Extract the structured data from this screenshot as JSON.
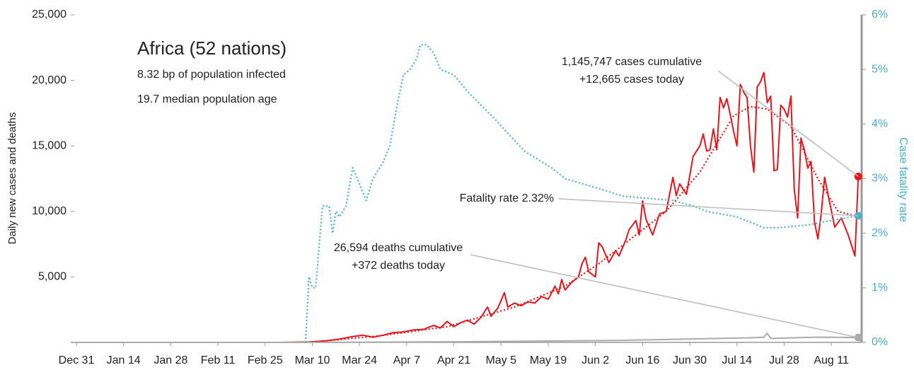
{
  "chart_data": {
    "type": "line",
    "title": "Africa (52 nations)",
    "subtitle": [
      "8.32 bp of population infected",
      "19.7 median population age"
    ],
    "y_label": "Daily new cases and deaths",
    "y2_label": "Case fatality rate",
    "xlim": [
      0,
      233
    ],
    "xticks": [
      {
        "value": 0,
        "label": "Dec 31"
      },
      {
        "value": 14,
        "label": "Jan 14"
      },
      {
        "value": 28,
        "label": "Jan 28"
      },
      {
        "value": 42,
        "label": "Feb 11"
      },
      {
        "value": 56,
        "label": "Feb 25"
      },
      {
        "value": 70,
        "label": "Mar 10"
      },
      {
        "value": 84,
        "label": "Mar 24"
      },
      {
        "value": 98,
        "label": "Apr 7"
      },
      {
        "value": 112,
        "label": "Apr 21"
      },
      {
        "value": 126,
        "label": "May 5"
      },
      {
        "value": 140,
        "label": "May 19"
      },
      {
        "value": 154,
        "label": "Jun 2"
      },
      {
        "value": 168,
        "label": "Jun 16"
      },
      {
        "value": 182,
        "label": "Jun 30"
      },
      {
        "value": 196,
        "label": "Jul 14"
      },
      {
        "value": 210,
        "label": "Jul 28"
      },
      {
        "value": 224,
        "label": "Aug 11"
      }
    ],
    "ylim": [
      0,
      25000
    ],
    "yticks": [
      {
        "value": 5000,
        "label": "5,000"
      },
      {
        "value": 10000,
        "label": "10,000"
      },
      {
        "value": 15000,
        "label": "15,000"
      },
      {
        "value": 20000,
        "label": "20,000"
      },
      {
        "value": 25000,
        "label": "25,000"
      }
    ],
    "y2lim": [
      0,
      6
    ],
    "y2ticks": [
      {
        "value": 0,
        "label": "0%"
      },
      {
        "value": 1,
        "label": "1%"
      },
      {
        "value": 2,
        "label": "2%"
      },
      {
        "value": 3,
        "label": "3%"
      },
      {
        "value": 4,
        "label": "4%"
      },
      {
        "value": 5,
        "label": "5%"
      },
      {
        "value": 6,
        "label": "6%"
      }
    ],
    "series": [
      {
        "color": "#e8141b",
        "style": "solid",
        "end_marker": true,
        "x": [
          0,
          60,
          69,
          74,
          78,
          82,
          85,
          88,
          91,
          94,
          97,
          100,
          103,
          106,
          108,
          110,
          112,
          114,
          116,
          118,
          120,
          122,
          123,
          125,
          127,
          128,
          130,
          132,
          134,
          136,
          138,
          140,
          142,
          143,
          144,
          145,
          147,
          149,
          150,
          151,
          152,
          154,
          155,
          156,
          158,
          160,
          161,
          163,
          164,
          166,
          167,
          168,
          169,
          171,
          173,
          175,
          177,
          178,
          179,
          181,
          183,
          185,
          186,
          187,
          188,
          189,
          190,
          191,
          192,
          193,
          194,
          195,
          196,
          197,
          198,
          199,
          200,
          201,
          202,
          203,
          204,
          205,
          206,
          207,
          208,
          209,
          210,
          211,
          212,
          213,
          214,
          215,
          216,
          217,
          218,
          219,
          220,
          221,
          222,
          223,
          225,
          227,
          229,
          231,
          232
        ],
        "values": [
          0,
          0,
          30,
          120,
          250,
          450,
          550,
          400,
          550,
          750,
          800,
          950,
          1000,
          1300,
          1100,
          1600,
          1200,
          1500,
          1700,
          1400,
          1900,
          2700,
          2000,
          2600,
          3800,
          2700,
          3000,
          2800,
          3100,
          3000,
          3500,
          3300,
          4300,
          3700,
          4800,
          4000,
          4600,
          5000,
          6000,
          6500,
          5400,
          5000,
          7600,
          7300,
          6100,
          7000,
          6600,
          7800,
          8600,
          9300,
          8200,
          10800,
          9400,
          8200,
          9800,
          10000,
          12600,
          11200,
          12100,
          11300,
          14200,
          15000,
          15900,
          14600,
          14700,
          16300,
          14700,
          18700,
          17900,
          18600,
          17400,
          16100,
          15000,
          19700,
          19100,
          18700,
          15000,
          13000,
          19500,
          19900,
          20600,
          18300,
          18800,
          13100,
          13200,
          18100,
          17800,
          17200,
          18800,
          11700,
          9500,
          15600,
          14700,
          13300,
          13800,
          9200,
          7900,
          9800,
          12600,
          11300,
          8800,
          9500,
          8200,
          6600,
          12665
        ]
      },
      {
        "color": "#e8141b",
        "style": "dotted",
        "x": [
          69,
          90,
          110,
          130,
          145,
          155,
          165,
          175,
          185,
          195,
          200,
          205,
          212,
          220,
          226,
          232
        ],
        "values": [
          0,
          500,
          1200,
          2700,
          4300,
          6000,
          8000,
          10000,
          13000,
          17300,
          18000,
          17800,
          16500,
          12500,
          10000,
          9600
        ]
      },
      {
        "color": "#4bafc8",
        "style": "dotted",
        "axis": "y2",
        "end_marker": true,
        "x": [
          68,
          69,
          70,
          71,
          73,
          75,
          76,
          77,
          78,
          79,
          80,
          82,
          84,
          86,
          88,
          91,
          93,
          95,
          97,
          99,
          101,
          102,
          104,
          106,
          108,
          112,
          116,
          124,
          133,
          141,
          145,
          156,
          162,
          177,
          183,
          187,
          196,
          200,
          204,
          208,
          217,
          221,
          232
        ],
        "values": [
          0,
          1.2,
          1.0,
          1.0,
          2.5,
          2.5,
          2.0,
          2.4,
          2.3,
          2.4,
          2.5,
          3.2,
          2.9,
          2.6,
          3.0,
          3.3,
          3.6,
          4.3,
          4.9,
          5.0,
          5.2,
          5.45,
          5.45,
          5.3,
          5.0,
          4.9,
          4.6,
          4.1,
          3.5,
          3.2,
          3.0,
          2.8,
          2.68,
          2.6,
          2.5,
          2.4,
          2.3,
          2.2,
          2.1,
          2.1,
          2.15,
          2.2,
          2.32
        ]
      },
      {
        "color": "#aaaaaa",
        "style": "solid",
        "end_marker": true,
        "x": [
          0,
          69,
          100,
          130,
          160,
          180,
          200,
          204,
          205,
          206,
          220,
          232
        ],
        "values": [
          0,
          0,
          30,
          80,
          150,
          250,
          350,
          400,
          700,
          300,
          400,
          372
        ]
      }
    ],
    "annotations": [
      {
        "lines": [
          "1,145,747 cases cumulative",
          "+12,665 cases today"
        ],
        "series": 0
      },
      {
        "lines": [
          "Fatality rate 2.32%"
        ],
        "series": 2
      },
      {
        "lines": [
          "26,594 deaths cumulative",
          "+372 deaths today"
        ],
        "series": 3
      }
    ]
  }
}
